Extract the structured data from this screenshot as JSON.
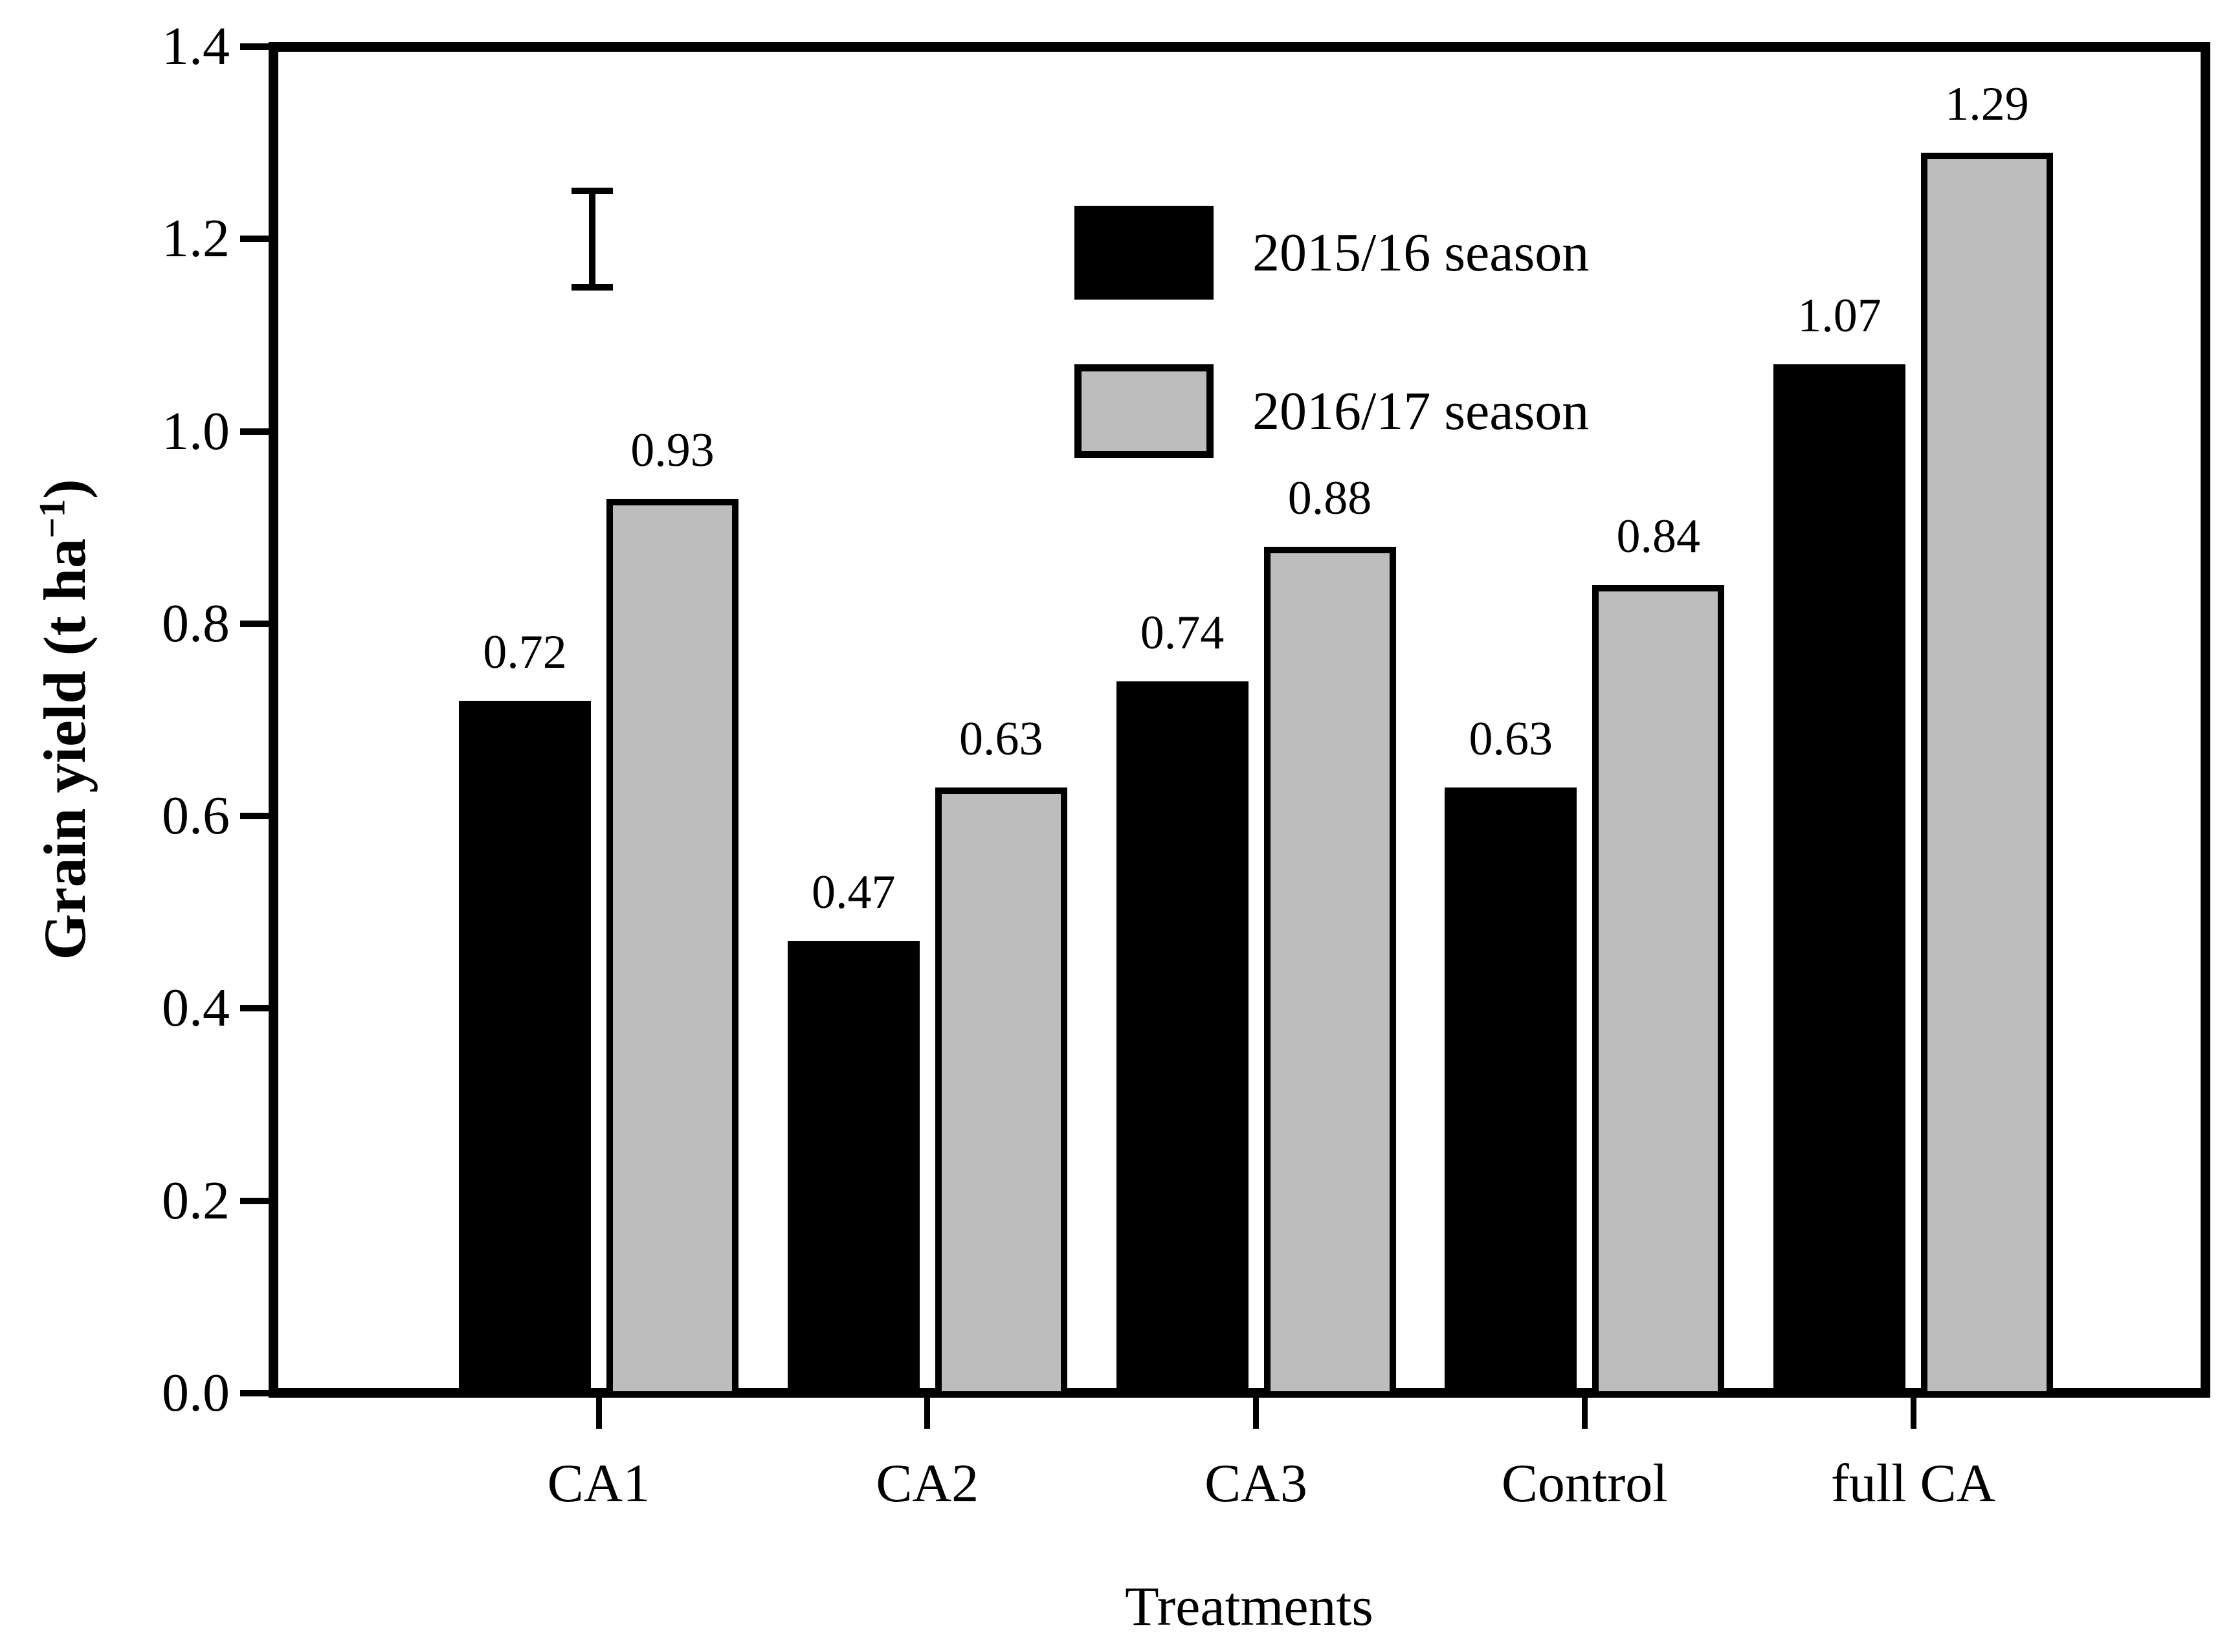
{
  "chart_data": {
    "type": "bar",
    "title": "",
    "categories": [
      "CA1",
      "CA2",
      "CA3",
      "Control",
      "full CA"
    ],
    "series": [
      {
        "name": "2015/16 season",
        "color": "#000000",
        "values": [
          0.72,
          0.47,
          0.74,
          0.63,
          1.07
        ],
        "value_labels": [
          "0.72",
          "0.47",
          "0.74",
          "0.63",
          "1.07"
        ]
      },
      {
        "name": "2016/17 season",
        "color": "#bdbdbd",
        "values": [
          0.93,
          0.63,
          0.88,
          0.84,
          1.29
        ],
        "value_labels": [
          "0.93",
          "0.63",
          "0.88",
          "0.84",
          "1.29"
        ]
      }
    ],
    "xlabel": "Treatments",
    "ylabel": {
      "text": "Grain yield (t ha⁻¹)",
      "prefix": "Grain yield (t ha",
      "sup": "−1",
      "suffix": ")"
    },
    "ylim": [
      0.0,
      1.4
    ],
    "yticks": [
      "0.0",
      "0.2",
      "0.4",
      "0.6",
      "0.8",
      "1.0",
      "1.2",
      "1.4"
    ],
    "grid": false,
    "legend_position": "inside-top-center",
    "bar_value_labels": true,
    "error_bar": {
      "category": "CA1",
      "from": 1.15,
      "to": 1.25
    },
    "colors": {
      "axis": "#000000",
      "background": "#ffffff",
      "bar_border": "#000000"
    }
  }
}
